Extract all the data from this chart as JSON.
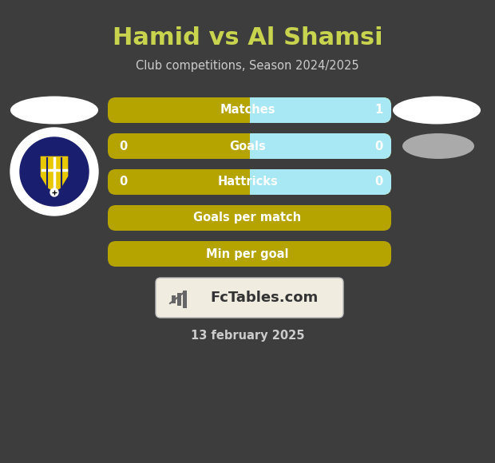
{
  "title": "Hamid vs Al Shamsi",
  "subtitle": "Club competitions, Season 2024/2025",
  "date": "13 february 2025",
  "background_color": "#3d3d3d",
  "title_color": "#c8d44e",
  "subtitle_color": "#cccccc",
  "date_color": "#cccccc",
  "rows": [
    {
      "label": "Matches",
      "left_val": null,
      "right_val": "1",
      "has_cyan": true
    },
    {
      "label": "Goals",
      "left_val": "0",
      "right_val": "0",
      "has_cyan": true
    },
    {
      "label": "Hattricks",
      "left_val": "0",
      "right_val": "0",
      "has_cyan": true
    },
    {
      "label": "Goals per match",
      "left_val": null,
      "right_val": null,
      "has_cyan": false
    },
    {
      "label": "Min per goal",
      "left_val": null,
      "right_val": null,
      "has_cyan": false
    }
  ],
  "bar_color_gold": "#b5a400",
  "bar_color_cyan": "#a8e8f4",
  "bar_text_color": "#ffffff",
  "fctables_box_color": "#f0ece0",
  "fctables_text_color": "#333333"
}
